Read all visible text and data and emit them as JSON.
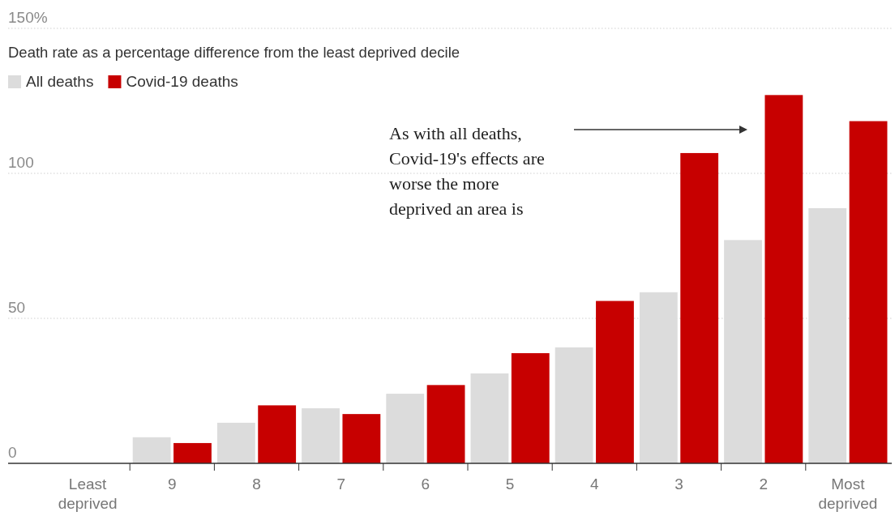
{
  "chart_data": {
    "type": "bar",
    "ylabel": "Death rate as a percentage difference from the least deprived decile",
    "categories": [
      "Least\ndeprived",
      "9",
      "8",
      "7",
      "6",
      "5",
      "4",
      "3",
      "2",
      "Most\ndeprived"
    ],
    "series": [
      {
        "name": "All deaths",
        "color": "#dcdcdc",
        "values": [
          0,
          9,
          14,
          19,
          24,
          31,
          40,
          59,
          77,
          88
        ]
      },
      {
        "name": "Covid-19 deaths",
        "color": "#c70000",
        "values": [
          0,
          7,
          20,
          17,
          27,
          38,
          56,
          107,
          127,
          118
        ]
      }
    ],
    "ylim": [
      0,
      150
    ],
    "yticks": [
      0,
      50,
      100,
      {
        "value": 150,
        "label": "150%"
      }
    ],
    "grid": "y",
    "legend": "top left",
    "annotations": [
      "As with all deaths,\nCovid-19's effects are\nworse the more\ndeprived an area is"
    ]
  }
}
